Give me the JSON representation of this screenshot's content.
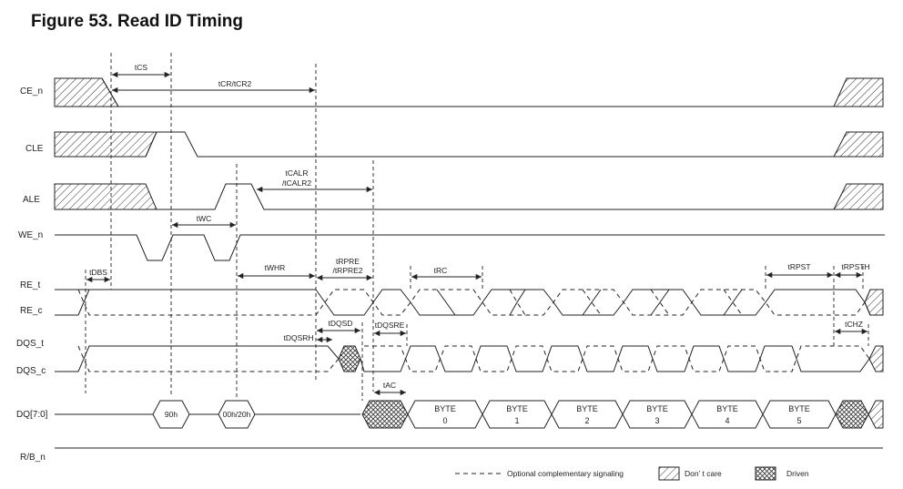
{
  "title": "Figure 53. Read ID Timing",
  "signals": {
    "ce_n": "CE_n",
    "cle": "CLE",
    "ale": "ALE",
    "we_n": "WE_n",
    "re_t": "RE_t",
    "re_c": "RE_c",
    "dqs_t": "DQS_t",
    "dqs_c": "DQS_c",
    "dq": "DQ[7:0]",
    "rb_n": "R/B_n"
  },
  "timing": {
    "tcs": "tCS",
    "tcr": "tCR/tCR2",
    "tcalr_1": "tCALR",
    "tcalr_2": "/tCALR2",
    "twc": "tWC",
    "tdbs": "tDBS",
    "twhr": "tWHR",
    "trpre_1": "tRPRE",
    "trpre_2": "/tRPRE2",
    "trc": "tRC",
    "trpst": "tRPST",
    "trpsth": "tRPSTH",
    "tdqsd": "tDQSD",
    "tdqsrh": "tDQSRH",
    "tdqsre": "tDQSRE",
    "tchz": "tCHZ",
    "tac": "tAC"
  },
  "dq_values": {
    "cmd": "90h",
    "addr": "00h/20h"
  },
  "bytes": [
    {
      "word": "BYTE",
      "index": "0"
    },
    {
      "word": "BYTE",
      "index": "1"
    },
    {
      "word": "BYTE",
      "index": "2"
    },
    {
      "word": "BYTE",
      "index": "3"
    },
    {
      "word": "BYTE",
      "index": "4"
    },
    {
      "word": "BYTE",
      "index": "5"
    }
  ],
  "legend": {
    "optional": "Optional complementary signaling",
    "dont_care": "Don’ t care",
    "driven": "Driven"
  }
}
